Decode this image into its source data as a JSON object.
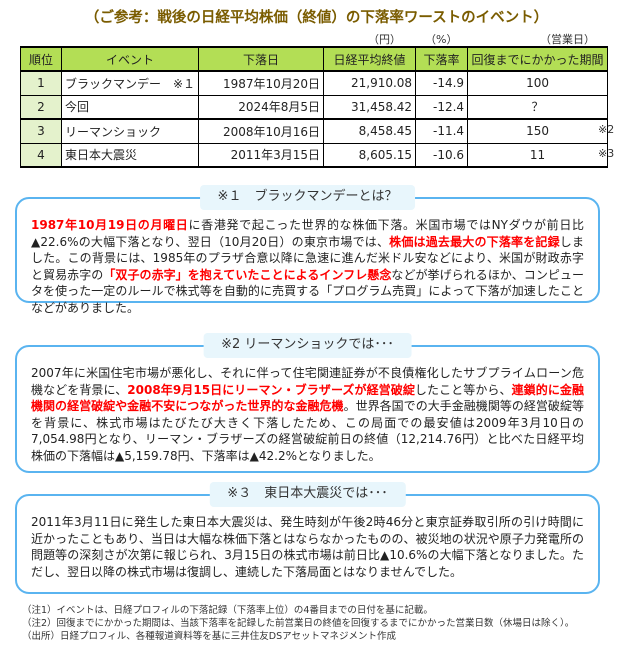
{
  "title": "（ご参考：戦後の日経平均株価（終値）の下落率ワーストのイベント）",
  "units": {
    "price": "（円）",
    "rate": "（%）",
    "days": "（営業日）"
  },
  "table": {
    "headers": [
      "順位",
      "イベント",
      "下落日",
      "日経平均終値",
      "下落率",
      "回復までにかかった期間"
    ],
    "rows": [
      {
        "rank": "1",
        "event": "ブラックマンデー　※１",
        "date": "1987年10月20日",
        "close": "21,910.08",
        "rate": "-14.9",
        "recovery": "100",
        "note": ""
      },
      {
        "rank": "2",
        "event": "今回",
        "date": "2024年8月5日",
        "close": "31,458.42",
        "rate": "-12.4",
        "recovery": "？",
        "note": ""
      },
      {
        "rank": "3",
        "event": "リーマンショック",
        "date": "2008年10月16日",
        "close": "8,458.45",
        "rate": "-11.4",
        "recovery": "150",
        "note": "※2"
      },
      {
        "rank": "4",
        "event": "東日本大震災",
        "date": "2011年3月15日",
        "close": "8,605.15",
        "rate": "-10.6",
        "recovery": "11",
        "note": "※3"
      }
    ]
  },
  "boxes": [
    {
      "title": "※１　ブラックマンデーとは？",
      "segments": [
        {
          "t": "1987年10月19日の月曜日",
          "red": true
        },
        {
          "t": "に香港発で起こった世界的な株価下落。米国市場ではNYダウが前日比▲22.6%の大幅下落となり、翌日（10月20日）の東京市場では、"
        },
        {
          "t": "株価は過去最大の下落率を記録",
          "red": true
        },
        {
          "t": "しました。この背景には、1985年のプラザ合意以降に急速に進んだ米ドル安などにより、米国が財政赤字と貿易赤字の"
        },
        {
          "t": "「双子の赤字」を抱えていたことによるインフレ懸念",
          "red": true
        },
        {
          "t": "などが挙げられるほか、コンピュータを使った一定のルールで株式等を自動的に売買する「プログラム売買」によって下落が加速したことなどがありました。"
        }
      ]
    },
    {
      "title": "※2  リーマンショックでは･･･",
      "segments": [
        {
          "t": "2007年に米国住宅市場が悪化し、それに伴って住宅関連証券が不良債権化したサブプライムローン危機などを背景に、"
        },
        {
          "t": "2008年9月15日にリーマン・ブラザーズが経営破綻",
          "red": true
        },
        {
          "t": "したこと等から、"
        },
        {
          "t": "連鎖的に金融機関の経営破綻や金融不安につながった世界的な金融危機",
          "red": true
        },
        {
          "t": "。世界各国での大手金融機関等の経営破綻等を背景に、株式市場はたびたび大きく下落したため、この局面での最安値は2009年3月10日の7,054.98円となり、リーマン・ブラザーズの経営破綻前日の終値（12,214.76円）と比べた日経平均株価の下落幅は▲5,159.78円、下落率は▲42.2%となりました。"
        }
      ]
    },
    {
      "title": "※３　東日本大震災では･･･",
      "segments": [
        {
          "t": "2011年3月11日に発生した東日本大震災は、発生時刻が午後2時46分と東京証券取引所の引け時間に近かったこともあり、当日は大幅な株価下落とはならなかったものの、被災地の状況や原子力発電所の問題等の深刻さが次第に報じられ、3月15日の株式市場は前日比▲10.6%の大幅下落となりました。ただし、翌日以降の株式市場は復調し、連続した下落局面とはなりませんでした。"
        }
      ]
    }
  ],
  "notes": [
    "（注1）イベントは、日経プロフィルの下落記録（下落率上位）の4番目までの日付を基に記載。",
    "（注2）回復までにかかった期間は、当該下落率を記録した前営業日の終値を回復するまでにかかった営業日数（休場日は除く）。",
    "（出所）日経プロフィル、各種報道資料等を基に三井住友DSアセットマネジメント作成"
  ],
  "colors": {
    "title": "#7a5c00",
    "header": "#b3de55",
    "rank": "#e4f2cc",
    "border": "#5ab4f0",
    "highlight": "#ff0000"
  }
}
